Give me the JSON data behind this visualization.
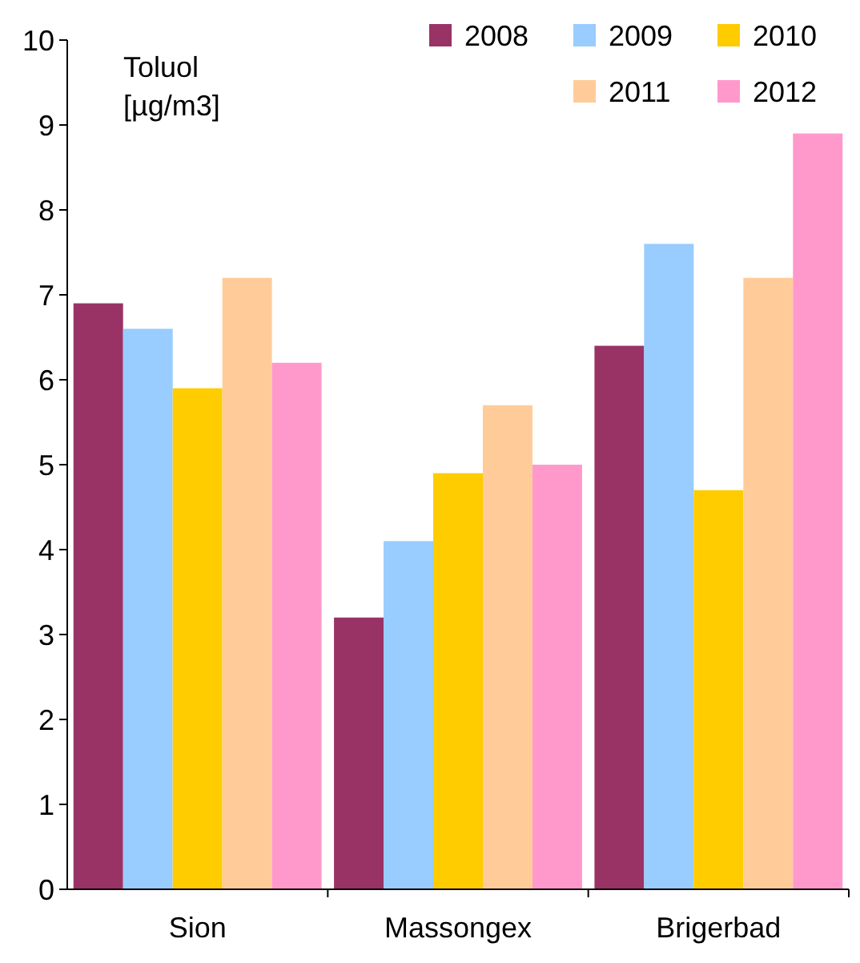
{
  "chart_data": {
    "type": "bar",
    "ylabel": "Toluol [µg/m3]",
    "categories": [
      "Sion",
      "Massongex",
      "Brigerbad"
    ],
    "series": [
      {
        "name": "2008",
        "color": "#993366",
        "values": [
          6.9,
          3.2,
          6.4
        ]
      },
      {
        "name": "2009",
        "color": "#99ccff",
        "values": [
          6.6,
          4.1,
          7.6
        ]
      },
      {
        "name": "2010",
        "color": "#ffcc00",
        "values": [
          5.9,
          4.9,
          4.7
        ]
      },
      {
        "name": "2011",
        "color": "#ffcc99",
        "values": [
          7.2,
          5.7,
          7.2
        ]
      },
      {
        "name": "2012",
        "color": "#ff99cc",
        "values": [
          6.2,
          5.0,
          8.9
        ]
      }
    ],
    "ylim": [
      0,
      10
    ],
    "yticks": [
      0,
      1,
      2,
      3,
      4,
      5,
      6,
      7,
      8,
      9,
      10
    ],
    "grid": false,
    "legend": "top right"
  }
}
